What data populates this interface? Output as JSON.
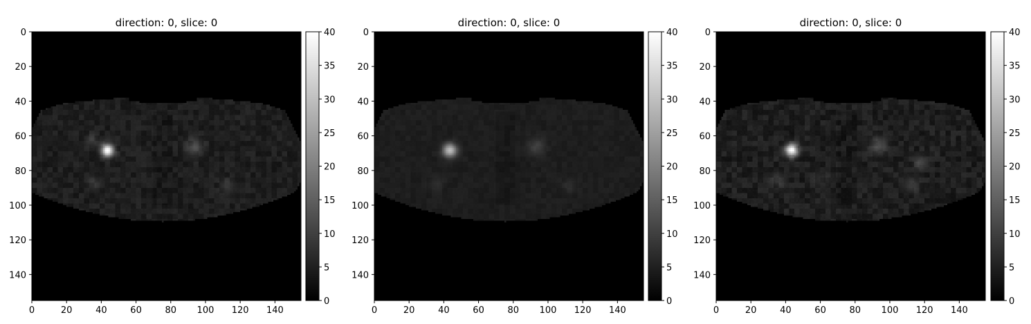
{
  "figure": {
    "panels": [
      {
        "title": "direction: 0, slice: 0"
      },
      {
        "title": "direction: 0, slice: 0"
      },
      {
        "title": "direction: 0, slice: 0"
      }
    ]
  },
  "chart_data": [
    {
      "type": "heatmap",
      "title": "direction: 0, slice: 0",
      "colormap": "gray",
      "xlim": [
        0,
        155
      ],
      "ylim": [
        155,
        0
      ],
      "x_ticks": [
        0,
        20,
        40,
        60,
        80,
        100,
        120,
        140
      ],
      "y_ticks": [
        0,
        20,
        40,
        60,
        80,
        100,
        120,
        140
      ],
      "colorbar": {
        "range": [
          0,
          40
        ],
        "ticks": [
          0,
          5,
          10,
          15,
          20,
          25,
          30,
          35,
          40
        ]
      },
      "body_intensity": 4.5,
      "texture_strength": 1.0,
      "hotspots": [
        {
          "x": 43,
          "y": 68,
          "r": 2.5,
          "value": 40
        },
        {
          "x": 93,
          "y": 66,
          "r": 3.5,
          "value": 12
        },
        {
          "x": 34,
          "y": 62,
          "r": 2.5,
          "value": 9
        },
        {
          "x": 35,
          "y": 87,
          "r": 3.0,
          "value": 8
        },
        {
          "x": 112,
          "y": 88,
          "r": 3.0,
          "value": 8
        }
      ]
    },
    {
      "type": "heatmap",
      "title": "direction: 0, slice: 0",
      "colormap": "gray",
      "xlim": [
        0,
        155
      ],
      "ylim": [
        155,
        0
      ],
      "x_ticks": [
        0,
        20,
        40,
        60,
        80,
        100,
        120,
        140
      ],
      "y_ticks": [
        0,
        20,
        40,
        60,
        80,
        100,
        120,
        140
      ],
      "colorbar": {
        "range": [
          0,
          40
        ],
        "ticks": [
          0,
          5,
          10,
          15,
          20,
          25,
          30,
          35,
          40
        ]
      },
      "body_intensity": 4.5,
      "texture_strength": 0.45,
      "hotspots": [
        {
          "x": 43,
          "y": 68,
          "r": 2.8,
          "value": 30
        },
        {
          "x": 93,
          "y": 66,
          "r": 3.5,
          "value": 10
        },
        {
          "x": 35,
          "y": 87,
          "r": 3.0,
          "value": 7
        },
        {
          "x": 112,
          "y": 88,
          "r": 3.0,
          "value": 7
        }
      ]
    },
    {
      "type": "heatmap",
      "title": "direction: 0, slice: 0",
      "colormap": "gray",
      "xlim": [
        0,
        155
      ],
      "ylim": [
        155,
        0
      ],
      "x_ticks": [
        0,
        20,
        40,
        60,
        80,
        100,
        120,
        140
      ],
      "y_ticks": [
        0,
        20,
        40,
        60,
        80,
        100,
        120,
        140
      ],
      "colorbar": {
        "range": [
          0,
          40
        ],
        "ticks": [
          0,
          5,
          10,
          15,
          20,
          25,
          30,
          35,
          40
        ]
      },
      "body_intensity": 4.5,
      "texture_strength": 1.2,
      "hotspots": [
        {
          "x": 43,
          "y": 68,
          "r": 2.5,
          "value": 40
        },
        {
          "x": 93,
          "y": 65,
          "r": 3.2,
          "value": 13
        },
        {
          "x": 117,
          "y": 75,
          "r": 2.5,
          "value": 10
        },
        {
          "x": 35,
          "y": 85,
          "r": 3.0,
          "value": 9
        },
        {
          "x": 112,
          "y": 88,
          "r": 3.0,
          "value": 9
        },
        {
          "x": 60,
          "y": 85,
          "r": 3.0,
          "value": 7
        }
      ]
    }
  ]
}
